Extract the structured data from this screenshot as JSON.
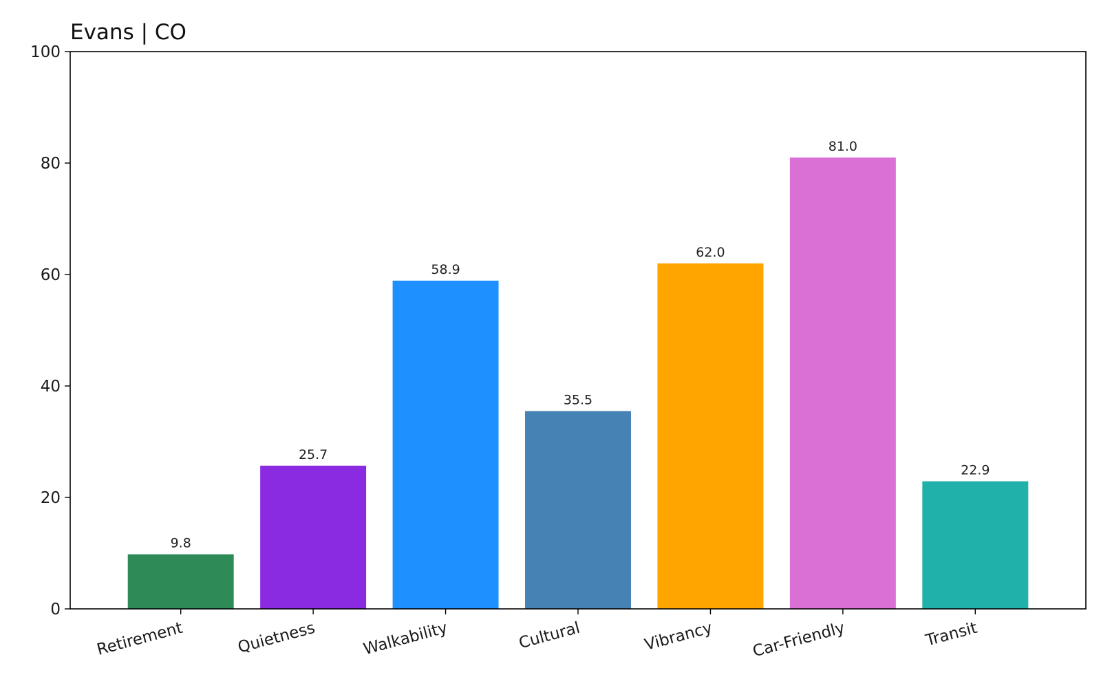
{
  "chart_data": {
    "type": "bar",
    "title": "Evans | CO",
    "xlabel": "",
    "ylabel": "",
    "ylim": [
      0,
      100
    ],
    "yticks": [
      0,
      20,
      40,
      60,
      80,
      100
    ],
    "grid": false,
    "categories": [
      "Retirement",
      "Quietness",
      "Walkability",
      "Cultural",
      "Vibrancy",
      "Car-Friendly",
      "Transit"
    ],
    "values": [
      9.8,
      25.7,
      58.9,
      35.5,
      62.0,
      81.0,
      22.9
    ],
    "value_labels": [
      "9.8",
      "25.7",
      "58.9",
      "35.5",
      "62.0",
      "81.0",
      "22.9"
    ],
    "colors": [
      "#2e8b57",
      "#8a2be2",
      "#1e90ff",
      "#4682b4",
      "#ffa500",
      "#da70d6",
      "#20b2aa"
    ]
  }
}
